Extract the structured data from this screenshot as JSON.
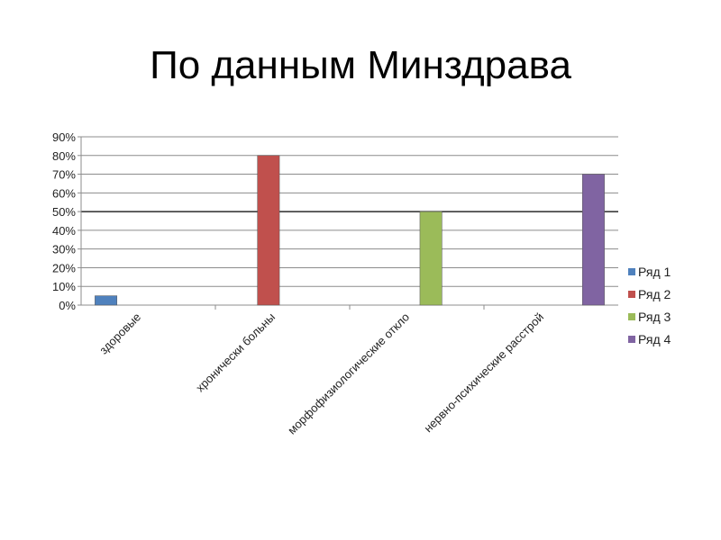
{
  "slide": {
    "title": "По данным Минздрава"
  },
  "chart_data": {
    "type": "bar",
    "categories": [
      "здоровые",
      "хронически больны",
      "морфофизиологические откло",
      "нервно-психические расстрой"
    ],
    "series": [
      {
        "name": "Ряд 1",
        "color": "#4f81bd",
        "values": [
          5,
          null,
          null,
          null
        ]
      },
      {
        "name": "Ряд 2",
        "color": "#c0504d",
        "values": [
          null,
          80,
          null,
          null
        ]
      },
      {
        "name": "Ряд 3",
        "color": "#9bbb59",
        "values": [
          null,
          null,
          50,
          null
        ]
      },
      {
        "name": "Ряд 4",
        "color": "#8064a2",
        "values": [
          null,
          null,
          null,
          70
        ]
      }
    ],
    "yticks": [
      "0%",
      "10%",
      "20%",
      "30%",
      "40%",
      "50%",
      "60%",
      "70%",
      "80%",
      "90%"
    ],
    "ylim": [
      0,
      90
    ],
    "grid": true,
    "legend": "right"
  }
}
